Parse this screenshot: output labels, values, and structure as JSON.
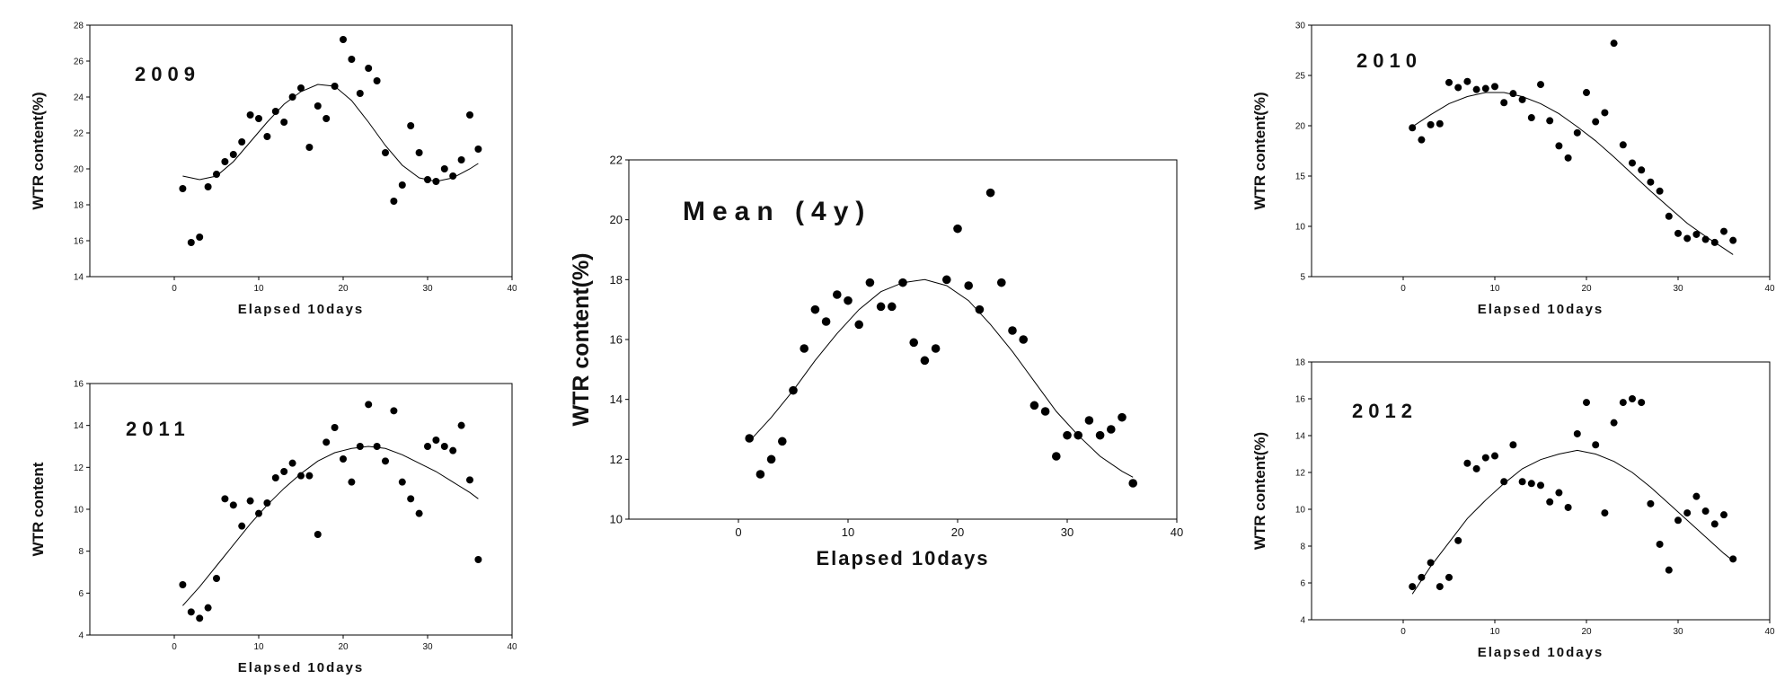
{
  "chart_data": [
    {
      "id": "p2009",
      "type": "scatter",
      "title": "2009",
      "xlabel": "Elapsed  10days",
      "ylabel": "WTR content(%)",
      "xlim": [
        -10,
        40
      ],
      "ylim": [
        14,
        28
      ],
      "xticks": [
        0,
        10,
        20,
        30,
        40
      ],
      "yticks": [
        14,
        16,
        18,
        20,
        22,
        24,
        26,
        28
      ],
      "points": [
        [
          1,
          18.9
        ],
        [
          2,
          15.9
        ],
        [
          3,
          16.2
        ],
        [
          4,
          19.0
        ],
        [
          5,
          19.7
        ],
        [
          6,
          20.4
        ],
        [
          7,
          20.8
        ],
        [
          8,
          21.5
        ],
        [
          9,
          23.0
        ],
        [
          10,
          22.8
        ],
        [
          11,
          21.8
        ],
        [
          12,
          23.2
        ],
        [
          13,
          22.6
        ],
        [
          14,
          24.0
        ],
        [
          15,
          24.5
        ],
        [
          16,
          21.2
        ],
        [
          17,
          23.5
        ],
        [
          18,
          22.8
        ],
        [
          19,
          24.6
        ],
        [
          20,
          27.2
        ],
        [
          21,
          26.1
        ],
        [
          22,
          24.2
        ],
        [
          23,
          25.6
        ],
        [
          24,
          24.9
        ],
        [
          25,
          20.9
        ],
        [
          26,
          18.2
        ],
        [
          27,
          19.1
        ],
        [
          28,
          22.4
        ],
        [
          29,
          20.9
        ],
        [
          30,
          19.4
        ],
        [
          31,
          19.3
        ],
        [
          32,
          20.0
        ],
        [
          33,
          19.6
        ],
        [
          34,
          20.5
        ],
        [
          35,
          23.0
        ],
        [
          36,
          21.1
        ]
      ],
      "fit": [
        [
          1,
          19.6
        ],
        [
          3,
          19.4
        ],
        [
          5,
          19.6
        ],
        [
          7,
          20.4
        ],
        [
          9,
          21.5
        ],
        [
          11,
          22.6
        ],
        [
          13,
          23.6
        ],
        [
          15,
          24.3
        ],
        [
          17,
          24.7
        ],
        [
          19,
          24.6
        ],
        [
          21,
          23.8
        ],
        [
          23,
          22.6
        ],
        [
          25,
          21.3
        ],
        [
          27,
          20.2
        ],
        [
          29,
          19.5
        ],
        [
          31,
          19.3
        ],
        [
          33,
          19.5
        ],
        [
          35,
          20.0
        ],
        [
          36,
          20.3
        ]
      ],
      "grid": false
    },
    {
      "id": "p2011",
      "type": "scatter",
      "title": "2011",
      "xlabel": "Elapsed  10days",
      "ylabel": "WTR content",
      "xlim": [
        -10,
        40
      ],
      "ylim": [
        4,
        16
      ],
      "xticks": [
        0,
        10,
        20,
        30,
        40
      ],
      "yticks": [
        4,
        6,
        8,
        10,
        12,
        14,
        16
      ],
      "points": [
        [
          1,
          6.4
        ],
        [
          2,
          5.1
        ],
        [
          3,
          4.8
        ],
        [
          4,
          5.3
        ],
        [
          5,
          6.7
        ],
        [
          6,
          10.5
        ],
        [
          7,
          10.2
        ],
        [
          8,
          9.2
        ],
        [
          9,
          10.4
        ],
        [
          10,
          9.8
        ],
        [
          11,
          10.3
        ],
        [
          12,
          11.5
        ],
        [
          13,
          11.8
        ],
        [
          14,
          12.2
        ],
        [
          15,
          11.6
        ],
        [
          16,
          11.6
        ],
        [
          17,
          8.8
        ],
        [
          18,
          13.2
        ],
        [
          19,
          13.9
        ],
        [
          20,
          12.4
        ],
        [
          21,
          11.3
        ],
        [
          22,
          13.0
        ],
        [
          23,
          15.0
        ],
        [
          24,
          13.0
        ],
        [
          25,
          12.3
        ],
        [
          26,
          14.7
        ],
        [
          27,
          11.3
        ],
        [
          28,
          10.5
        ],
        [
          29,
          9.8
        ],
        [
          30,
          13.0
        ],
        [
          31,
          13.3
        ],
        [
          32,
          13.0
        ],
        [
          33,
          12.8
        ],
        [
          34,
          14.0
        ],
        [
          35,
          11.4
        ],
        [
          36,
          7.6
        ]
      ],
      "fit": [
        [
          1,
          5.4
        ],
        [
          3,
          6.3
        ],
        [
          5,
          7.3
        ],
        [
          7,
          8.3
        ],
        [
          9,
          9.3
        ],
        [
          11,
          10.2
        ],
        [
          13,
          11.0
        ],
        [
          15,
          11.7
        ],
        [
          17,
          12.3
        ],
        [
          19,
          12.7
        ],
        [
          21,
          12.9
        ],
        [
          23,
          13.0
        ],
        [
          25,
          12.9
        ],
        [
          27,
          12.6
        ],
        [
          29,
          12.2
        ],
        [
          31,
          11.8
        ],
        [
          33,
          11.3
        ],
        [
          35,
          10.8
        ],
        [
          36,
          10.5
        ]
      ],
      "grid": false
    },
    {
      "id": "pmean",
      "type": "scatter",
      "title": "Mean (4y)",
      "xlabel": "Elapsed  10days",
      "ylabel": "WTR content(%)",
      "xlim": [
        -10,
        40
      ],
      "ylim": [
        10,
        22
      ],
      "xticks": [
        0,
        10,
        20,
        30,
        40
      ],
      "yticks": [
        10,
        12,
        14,
        16,
        18,
        20,
        22
      ],
      "points": [
        [
          1,
          12.7
        ],
        [
          2,
          11.5
        ],
        [
          3,
          12.0
        ],
        [
          4,
          12.6
        ],
        [
          5,
          14.3
        ],
        [
          6,
          15.7
        ],
        [
          7,
          17.0
        ],
        [
          8,
          16.6
        ],
        [
          9,
          17.5
        ],
        [
          10,
          17.3
        ],
        [
          11,
          16.5
        ],
        [
          12,
          17.9
        ],
        [
          13,
          17.1
        ],
        [
          14,
          17.1
        ],
        [
          15,
          17.9
        ],
        [
          16,
          15.9
        ],
        [
          17,
          15.3
        ],
        [
          18,
          15.7
        ],
        [
          19,
          18.0
        ],
        [
          20,
          19.7
        ],
        [
          21,
          17.8
        ],
        [
          22,
          17.0
        ],
        [
          23,
          20.9
        ],
        [
          24,
          17.9
        ],
        [
          25,
          16.3
        ],
        [
          26,
          16.0
        ],
        [
          27,
          13.8
        ],
        [
          28,
          13.6
        ],
        [
          29,
          12.1
        ],
        [
          30,
          12.8
        ],
        [
          31,
          12.8
        ],
        [
          32,
          13.3
        ],
        [
          33,
          12.8
        ],
        [
          34,
          13.0
        ],
        [
          35,
          13.4
        ],
        [
          36,
          11.2
        ]
      ],
      "fit": [
        [
          1,
          12.6
        ],
        [
          3,
          13.4
        ],
        [
          5,
          14.3
        ],
        [
          7,
          15.3
        ],
        [
          9,
          16.2
        ],
        [
          11,
          17.0
        ],
        [
          13,
          17.6
        ],
        [
          15,
          17.9
        ],
        [
          17,
          18.0
        ],
        [
          19,
          17.8
        ],
        [
          21,
          17.3
        ],
        [
          23,
          16.5
        ],
        [
          25,
          15.6
        ],
        [
          27,
          14.6
        ],
        [
          29,
          13.6
        ],
        [
          31,
          12.8
        ],
        [
          33,
          12.1
        ],
        [
          35,
          11.6
        ],
        [
          36,
          11.4
        ]
      ],
      "grid": false
    },
    {
      "id": "p2010",
      "type": "scatter",
      "title": "2010",
      "xlabel": "Elapsed  10days",
      "ylabel": "WTR content(%)",
      "xlim": [
        -10,
        40
      ],
      "ylim": [
        5,
        30
      ],
      "xticks": [
        0,
        10,
        20,
        30,
        40
      ],
      "yticks": [
        5,
        10,
        15,
        20,
        25,
        30
      ],
      "points": [
        [
          1,
          19.8
        ],
        [
          2,
          18.6
        ],
        [
          3,
          20.1
        ],
        [
          4,
          20.2
        ],
        [
          5,
          24.3
        ],
        [
          6,
          23.8
        ],
        [
          7,
          24.4
        ],
        [
          8,
          23.6
        ],
        [
          9,
          23.7
        ],
        [
          10,
          23.9
        ],
        [
          11,
          22.3
        ],
        [
          12,
          23.2
        ],
        [
          13,
          22.6
        ],
        [
          14,
          20.8
        ],
        [
          15,
          24.1
        ],
        [
          16,
          20.5
        ],
        [
          17,
          18.0
        ],
        [
          18,
          16.8
        ],
        [
          19,
          19.3
        ],
        [
          20,
          23.3
        ],
        [
          21,
          20.4
        ],
        [
          22,
          21.3
        ],
        [
          23,
          28.2
        ],
        [
          24,
          18.1
        ],
        [
          25,
          16.3
        ],
        [
          26,
          15.6
        ],
        [
          27,
          14.4
        ],
        [
          28,
          13.5
        ],
        [
          29,
          11.0
        ],
        [
          30,
          9.3
        ],
        [
          31,
          8.8
        ],
        [
          32,
          9.2
        ],
        [
          33,
          8.7
        ],
        [
          34,
          8.4
        ],
        [
          35,
          9.5
        ],
        [
          36,
          8.6
        ]
      ],
      "fit": [
        [
          1,
          19.9
        ],
        [
          3,
          21.1
        ],
        [
          5,
          22.2
        ],
        [
          7,
          22.9
        ],
        [
          9,
          23.3
        ],
        [
          11,
          23.3
        ],
        [
          13,
          22.9
        ],
        [
          15,
          22.2
        ],
        [
          17,
          21.2
        ],
        [
          19,
          19.9
        ],
        [
          21,
          18.5
        ],
        [
          23,
          16.9
        ],
        [
          25,
          15.2
        ],
        [
          27,
          13.5
        ],
        [
          29,
          11.9
        ],
        [
          31,
          10.3
        ],
        [
          33,
          9.0
        ],
        [
          35,
          7.8
        ],
        [
          36,
          7.2
        ]
      ],
      "grid": false
    },
    {
      "id": "p2012",
      "type": "scatter",
      "title": "2012",
      "xlabel": "Elapsed  10days",
      "ylabel": "WTR content(%)",
      "xlim": [
        -10,
        40
      ],
      "ylim": [
        4,
        18
      ],
      "xticks": [
        0,
        10,
        20,
        30,
        40
      ],
      "yticks": [
        4,
        6,
        8,
        10,
        12,
        14,
        16,
        18
      ],
      "points": [
        [
          1,
          5.8
        ],
        [
          2,
          6.3
        ],
        [
          3,
          7.1
        ],
        [
          4,
          5.8
        ],
        [
          5,
          6.3
        ],
        [
          6,
          8.3
        ],
        [
          7,
          12.5
        ],
        [
          8,
          12.2
        ],
        [
          9,
          12.8
        ],
        [
          10,
          12.9
        ],
        [
          11,
          11.5
        ],
        [
          12,
          13.5
        ],
        [
          13,
          11.5
        ],
        [
          14,
          11.4
        ],
        [
          15,
          11.3
        ],
        [
          16,
          10.4
        ],
        [
          17,
          10.9
        ],
        [
          18,
          10.1
        ],
        [
          19,
          14.1
        ],
        [
          20,
          15.8
        ],
        [
          21,
          13.5
        ],
        [
          22,
          9.8
        ],
        [
          23,
          14.7
        ],
        [
          24,
          15.8
        ],
        [
          25,
          16.0
        ],
        [
          26,
          15.8
        ],
        [
          27,
          10.3
        ],
        [
          28,
          8.1
        ],
        [
          29,
          6.7
        ],
        [
          30,
          9.4
        ],
        [
          31,
          9.8
        ],
        [
          32,
          10.7
        ],
        [
          33,
          9.9
        ],
        [
          34,
          9.2
        ],
        [
          35,
          9.7
        ],
        [
          36,
          7.3
        ]
      ],
      "fit": [
        [
          1,
          5.4
        ],
        [
          3,
          6.9
        ],
        [
          5,
          8.2
        ],
        [
          7,
          9.5
        ],
        [
          9,
          10.5
        ],
        [
          11,
          11.4
        ],
        [
          13,
          12.2
        ],
        [
          15,
          12.7
        ],
        [
          17,
          13.0
        ],
        [
          19,
          13.2
        ],
        [
          21,
          13.0
        ],
        [
          23,
          12.6
        ],
        [
          25,
          12.0
        ],
        [
          27,
          11.2
        ],
        [
          29,
          10.3
        ],
        [
          31,
          9.4
        ],
        [
          33,
          8.5
        ],
        [
          35,
          7.6
        ],
        [
          36,
          7.2
        ]
      ],
      "grid": false
    }
  ]
}
